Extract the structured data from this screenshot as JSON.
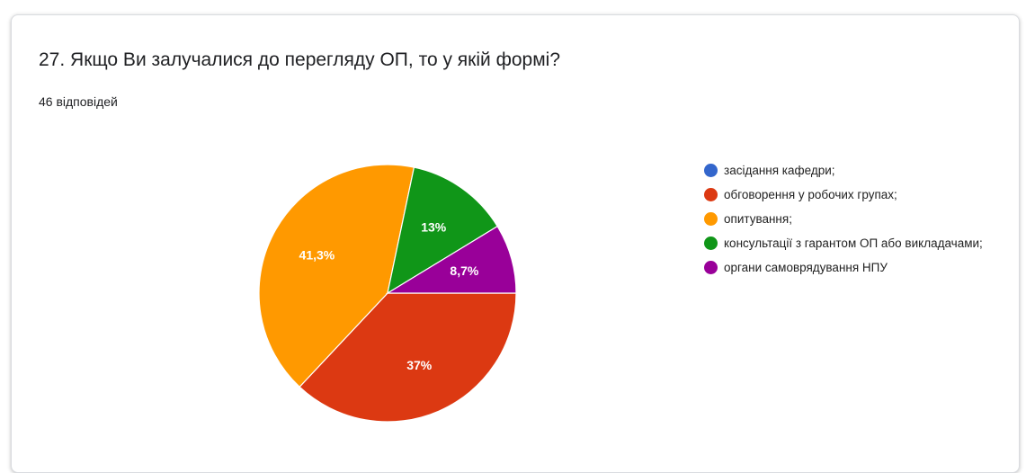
{
  "chart_data": {
    "type": "pie",
    "title": "27. Якщо Ви залучалися до перегляду ОП, то у якій формі?",
    "subtitle": "46 відповідей",
    "categories": [
      "засідання кафедри;",
      "обговорення у робочих групах;",
      "опитування;",
      "консультації з гарантом ОП або викладачами;",
      "органи самоврядування НПУ"
    ],
    "values": [
      0,
      37,
      41.3,
      13,
      8.7
    ],
    "value_labels": [
      null,
      "37%",
      "41,3%",
      "13%",
      "8,7%"
    ],
    "colors": [
      "#3366cc",
      "#dc3912",
      "#ff9900",
      "#109618",
      "#990099"
    ]
  }
}
